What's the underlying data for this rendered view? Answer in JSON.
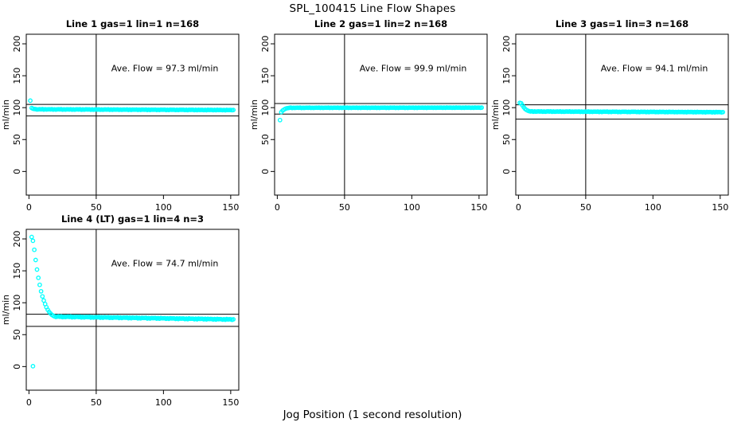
{
  "header": {
    "title": "SPL_100415  Line Flow Shapes"
  },
  "footer": {
    "xlabel": "Jog Position (1 second resolution)"
  },
  "axes": {
    "ylabel": "ml/min"
  },
  "colors": {
    "point": "#00ffff",
    "line": "#000000",
    "background": "#ffffff",
    "text": "#000000"
  },
  "chart_data": [
    {
      "type": "scatter",
      "title": "Line 1 gas=1 lin=1 n=168",
      "annotation": "Ave. Flow =  97.3  ml/min",
      "ave_flow_ml_min": 97.3,
      "n": 168,
      "xlim": [
        -2,
        156
      ],
      "ylim": [
        -37,
        215
      ],
      "xticks": [
        0,
        50,
        100,
        150
      ],
      "yticks": [
        0,
        50,
        100,
        150,
        200
      ],
      "vline_x": 50,
      "hlines_y": [
        105,
        87
      ],
      "transient_points": [
        [
          1,
          111
        ],
        [
          2,
          99.5
        ],
        [
          3,
          98.3
        ],
        [
          4,
          97.9
        ],
        [
          5,
          97.7
        ]
      ],
      "plateau": {
        "x_start": 6,
        "x_end": 152,
        "y_start": 97.4,
        "y_end": 96.2,
        "noise": 0.3
      },
      "outlier_points": []
    },
    {
      "type": "scatter",
      "title": "Line 2 gas=1 lin=2 n=168",
      "annotation": "Ave. Flow =  99.9  ml/min",
      "ave_flow_ml_min": 99.9,
      "n": 168,
      "xlim": [
        -2,
        156
      ],
      "ylim": [
        -37,
        215
      ],
      "xticks": [
        0,
        50,
        100,
        150
      ],
      "yticks": [
        0,
        50,
        100,
        150,
        200
      ],
      "vline_x": 50,
      "hlines_y": [
        106.5,
        90
      ],
      "transient_points": [
        [
          2,
          80.5
        ],
        [
          3,
          93
        ],
        [
          4,
          95.5
        ],
        [
          5,
          97
        ],
        [
          6,
          98.2
        ],
        [
          7,
          99
        ],
        [
          8,
          99.4
        ]
      ],
      "plateau": {
        "x_start": 9,
        "x_end": 152,
        "y_start": 99.8,
        "y_end": 100.0,
        "noise": 0.25
      },
      "outlier_points": []
    },
    {
      "type": "scatter",
      "title": "Line 3 gas=1 lin=3 n=168",
      "annotation": "Ave. Flow =  94.1  ml/min",
      "ave_flow_ml_min": 94.1,
      "n": 168,
      "xlim": [
        -2,
        156
      ],
      "ylim": [
        -37,
        215
      ],
      "xticks": [
        0,
        50,
        100,
        150
      ],
      "yticks": [
        0,
        50,
        100,
        150,
        200
      ],
      "vline_x": 50,
      "hlines_y": [
        104.5,
        82
      ],
      "transient_points": [
        [
          1,
          107.5
        ],
        [
          2,
          106.8
        ],
        [
          3,
          103.5
        ],
        [
          4,
          100.5
        ],
        [
          5,
          98
        ],
        [
          6,
          96.3
        ],
        [
          7,
          95.2
        ],
        [
          8,
          94.5
        ]
      ],
      "plateau": {
        "x_start": 9,
        "x_end": 152,
        "y_start": 94.0,
        "y_end": 92.9,
        "noise": 0.3
      },
      "outlier_points": []
    },
    {
      "type": "scatter",
      "title": "Line 4 (LT) gas=1 lin=4 n=3",
      "annotation": "Ave. Flow =  74.7  ml/min",
      "ave_flow_ml_min": 74.7,
      "n": 3,
      "xlim": [
        -2,
        156
      ],
      "ylim": [
        -37,
        215
      ],
      "xticks": [
        0,
        50,
        100,
        150
      ],
      "yticks": [
        0,
        50,
        100,
        150,
        200
      ],
      "vline_x": 50,
      "hlines_y": [
        82,
        63
      ],
      "transient_points": [
        [
          2,
          203
        ],
        [
          3,
          197
        ],
        [
          4,
          183
        ],
        [
          5,
          167
        ],
        [
          6,
          152
        ],
        [
          7,
          139
        ],
        [
          8,
          128
        ],
        [
          9,
          118
        ],
        [
          10,
          110
        ],
        [
          11,
          103.5
        ],
        [
          12,
          98
        ],
        [
          13,
          93
        ],
        [
          14,
          89
        ],
        [
          15,
          85.8
        ],
        [
          16,
          83.2
        ],
        [
          17,
          81.2
        ],
        [
          18,
          79.7
        ],
        [
          19,
          78.7
        ]
      ],
      "plateau": {
        "x_start": 20,
        "x_end": 152,
        "y_start": 78.2,
        "y_end": 73.8,
        "noise": 0.55
      },
      "outlier_points": [
        [
          3,
          0.5
        ]
      ]
    }
  ]
}
